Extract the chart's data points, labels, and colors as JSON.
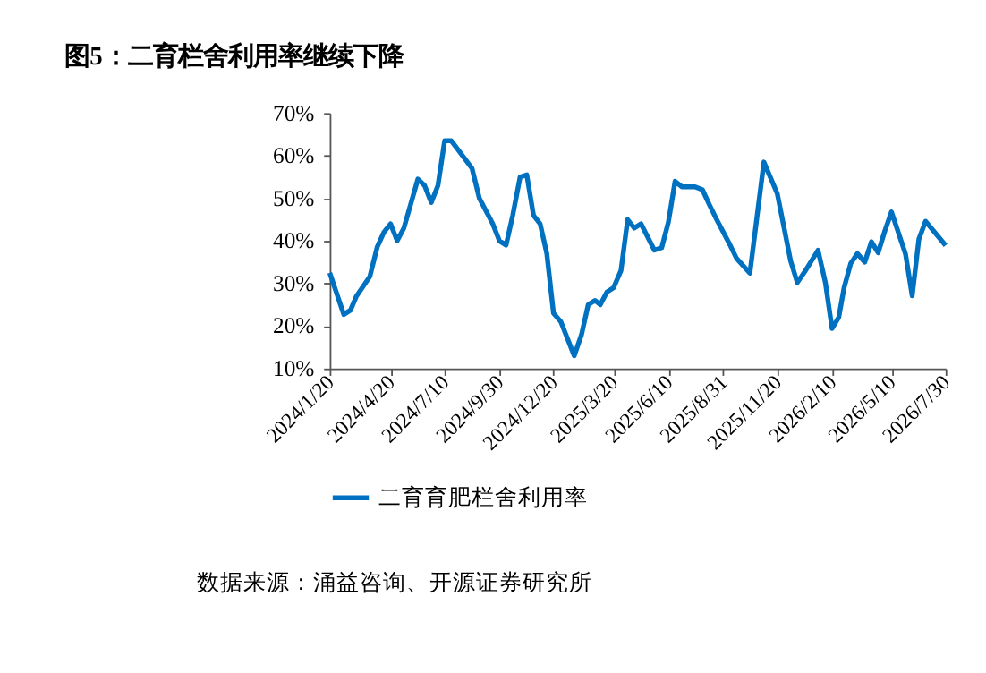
{
  "chart_data": {
    "type": "line",
    "title": "图5：二育栏舍利用率继续下降",
    "x": [
      "2024-01-20",
      "2024-02-10",
      "2024-02-20",
      "2024-02-29",
      "2024-03-20",
      "2024-03-31",
      "2024-04-10",
      "2024-04-20",
      "2024-04-30",
      "2024-05-10",
      "2024-05-31",
      "2024-06-10",
      "2024-06-20",
      "2024-06-30",
      "2024-07-10",
      "2024-07-20",
      "2024-08-20",
      "2024-08-31",
      "2024-09-20",
      "2024-09-30",
      "2024-10-10",
      "2024-10-20",
      "2024-10-31",
      "2024-11-10",
      "2024-11-20",
      "2024-11-30",
      "2024-12-10",
      "2024-12-20",
      "2024-12-31",
      "2025-01-10",
      "2025-01-20",
      "2025-01-31",
      "2025-02-10",
      "2025-02-20",
      "2025-02-28",
      "2025-03-10",
      "2025-03-20",
      "2025-03-31",
      "2025-04-10",
      "2025-04-20",
      "2025-04-30",
      "2025-05-20",
      "2025-05-31",
      "2025-06-10",
      "2025-06-20",
      "2025-06-30",
      "2025-07-20",
      "2025-07-31",
      "2025-08-10",
      "2025-08-20",
      "2025-09-10",
      "2025-09-20",
      "2025-10-10",
      "2025-10-31",
      "2025-11-20",
      "2025-12-10",
      "2025-12-20",
      "2025-12-31",
      "2026-01-20",
      "2026-01-31",
      "2026-02-10",
      "2026-02-20",
      "2026-02-28",
      "2026-03-10",
      "2026-03-20",
      "2026-03-31",
      "2026-04-10",
      "2026-04-20",
      "2026-04-30",
      "2026-05-10",
      "2026-05-31",
      "2026-06-10",
      "2026-06-20",
      "2026-06-30",
      "2026-07-30"
    ],
    "series": [
      {
        "name": "二育育肥栏舍利用率",
        "color": "#0070c0",
        "values": [
          32.5,
          22.7,
          23.7,
          27,
          31.6,
          38.5,
          42,
          44,
          40,
          43,
          54.5,
          53,
          49,
          53,
          63.5,
          63.5,
          57,
          50,
          44,
          40,
          39,
          46,
          55,
          55.5,
          46,
          44,
          37,
          23,
          21,
          17,
          13,
          18,
          25,
          26,
          25,
          28,
          29,
          33,
          45,
          43,
          44,
          37.8,
          38.4,
          44.4,
          54,
          52.7,
          52.7,
          52,
          48.6,
          45.4,
          39.1,
          35.9,
          32.4,
          58.5,
          51.1,
          35.3,
          30.2,
          32.7,
          37.8,
          30.2,
          19.4,
          22,
          29,
          34.7,
          37,
          35,
          39.8,
          37.2,
          42.3,
          46.8,
          36.9,
          27.1,
          40.4,
          44.6,
          38.9
        ]
      }
    ],
    "ylim": [
      10,
      70
    ],
    "yticks": [
      {
        "value": 10,
        "label": "10%"
      },
      {
        "value": 20,
        "label": "20%"
      },
      {
        "value": 30,
        "label": "30%"
      },
      {
        "value": 40,
        "label": "40%"
      },
      {
        "value": 50,
        "label": "50%"
      },
      {
        "value": 60,
        "label": "60%"
      },
      {
        "value": 70,
        "label": "70%"
      }
    ],
    "xlim": [
      "2024-01-20",
      "2026-07-30"
    ],
    "xticks": [
      {
        "value": "2024-01-20",
        "label": "2024/1/20"
      },
      {
        "value": "2024-04-20",
        "label": "2024/4/20"
      },
      {
        "value": "2024-07-10",
        "label": "2024/7/10"
      },
      {
        "value": "2024-09-30",
        "label": "2024/9/30"
      },
      {
        "value": "2024-12-20",
        "label": "2024/12/20"
      },
      {
        "value": "2025-03-20",
        "label": "2025/3/20"
      },
      {
        "value": "2025-06-10",
        "label": "2025/6/10"
      },
      {
        "value": "2025-08-31",
        "label": "2025/8/31"
      },
      {
        "value": "2025-11-20",
        "label": "2025/11/20"
      },
      {
        "value": "2026-02-10",
        "label": "2026/2/10"
      },
      {
        "value": "2026-05-10",
        "label": "2026/5/10"
      },
      {
        "value": "2026-07-30",
        "label": "2026/7/30"
      }
    ],
    "grid": false,
    "legend": "bottom",
    "line_style": "solid",
    "marker": "none",
    "annotations": [
      "数据来源：涌益咨询、开源证券研究所"
    ]
  }
}
